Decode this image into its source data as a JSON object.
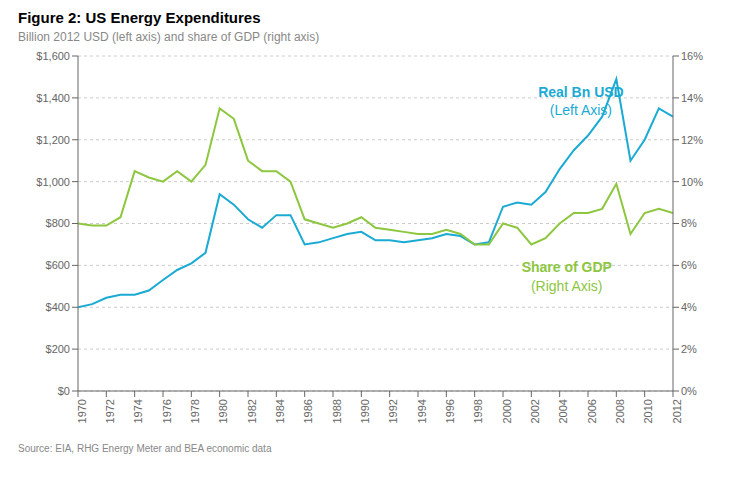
{
  "chart_data": {
    "type": "line",
    "title": "Figure 2: US Energy Expenditures",
    "subtitle": "Billion 2012 USD (left axis) and share of GDP (right axis)",
    "source": "Source: EIA, RHG Energy Meter and BEA economic data",
    "x": [
      1970,
      1971,
      1972,
      1973,
      1974,
      1975,
      1976,
      1977,
      1978,
      1979,
      1980,
      1981,
      1982,
      1983,
      1984,
      1985,
      1986,
      1987,
      1988,
      1989,
      1990,
      1991,
      1992,
      1993,
      1994,
      1995,
      1996,
      1997,
      1998,
      1999,
      2000,
      2001,
      2002,
      2003,
      2004,
      2005,
      2006,
      2007,
      2008,
      2009,
      2010,
      2011,
      2012
    ],
    "xlim": [
      1970,
      2012
    ],
    "xticks": [
      1970,
      1972,
      1974,
      1976,
      1978,
      1980,
      1982,
      1984,
      1986,
      1988,
      1990,
      1992,
      1994,
      1996,
      1998,
      2000,
      2002,
      2004,
      2006,
      2008,
      2010,
      2012
    ],
    "ylim": [
      0,
      1600
    ],
    "yticks": [
      {
        "value": 0,
        "label": "$0"
      },
      {
        "value": 200,
        "label": "$200"
      },
      {
        "value": 400,
        "label": "$400"
      },
      {
        "value": 600,
        "label": "$600"
      },
      {
        "value": 800,
        "label": "$800"
      },
      {
        "value": 1000,
        "label": "$1,000"
      },
      {
        "value": 1200,
        "label": "$1,200"
      },
      {
        "value": 1400,
        "label": "$1,400"
      },
      {
        "value": 1600,
        "label": "$1,600"
      }
    ],
    "y2lim": [
      0,
      16
    ],
    "y2ticks": [
      {
        "value": 0,
        "label": "0%"
      },
      {
        "value": 2,
        "label": "2%"
      },
      {
        "value": 4,
        "label": "4%"
      },
      {
        "value": 6,
        "label": "6%"
      },
      {
        "value": 8,
        "label": "8%"
      },
      {
        "value": 10,
        "label": "10%"
      },
      {
        "value": 12,
        "label": "12%"
      },
      {
        "value": 14,
        "label": "14%"
      },
      {
        "value": 16,
        "label": "16%"
      }
    ],
    "grid": true,
    "series": [
      {
        "name": "Real Bn USD",
        "color": "#1aaad4",
        "values": [
          400,
          415,
          445,
          460,
          460,
          480,
          530,
          578,
          610,
          660,
          940,
          890,
          820,
          780,
          840,
          840,
          700,
          710,
          730,
          750,
          760,
          720,
          720,
          710,
          720,
          730,
          750,
          740,
          700,
          710,
          880,
          900,
          890,
          950,
          1060,
          1150,
          1220,
          1310,
          1490,
          1100,
          1200,
          1350,
          1310
        ]
      },
      {
        "name": "Share of GDP",
        "color": "#8dc63f",
        "axis": "y2",
        "values": [
          8.0,
          7.9,
          7.9,
          8.3,
          10.5,
          10.2,
          10.0,
          10.5,
          10.0,
          10.8,
          13.5,
          13.0,
          11.0,
          10.5,
          10.5,
          10.0,
          8.2,
          8.0,
          7.8,
          8.0,
          8.3,
          7.8,
          7.7,
          7.6,
          7.5,
          7.5,
          7.7,
          7.5,
          7.0,
          7.0,
          8.0,
          7.8,
          7.0,
          7.3,
          8.0,
          8.5,
          8.5,
          8.7,
          9.9,
          7.5,
          8.5,
          8.7,
          8.5
        ]
      }
    ],
    "annotations": [
      {
        "text": "Real Bn USD",
        "x": 2005.5,
        "y": 1430,
        "color": "#1aaad4"
      },
      {
        "text": "(Left Axis)",
        "x": 2005.5,
        "y": 1340,
        "color": "#1aaad4"
      },
      {
        "text": "Share of GDP",
        "x": 2004.5,
        "y": 590,
        "color": "#8dc63f"
      },
      {
        "text": "(Right Axis)",
        "x": 2004.5,
        "y": 500,
        "color": "#8dc63f"
      }
    ]
  }
}
